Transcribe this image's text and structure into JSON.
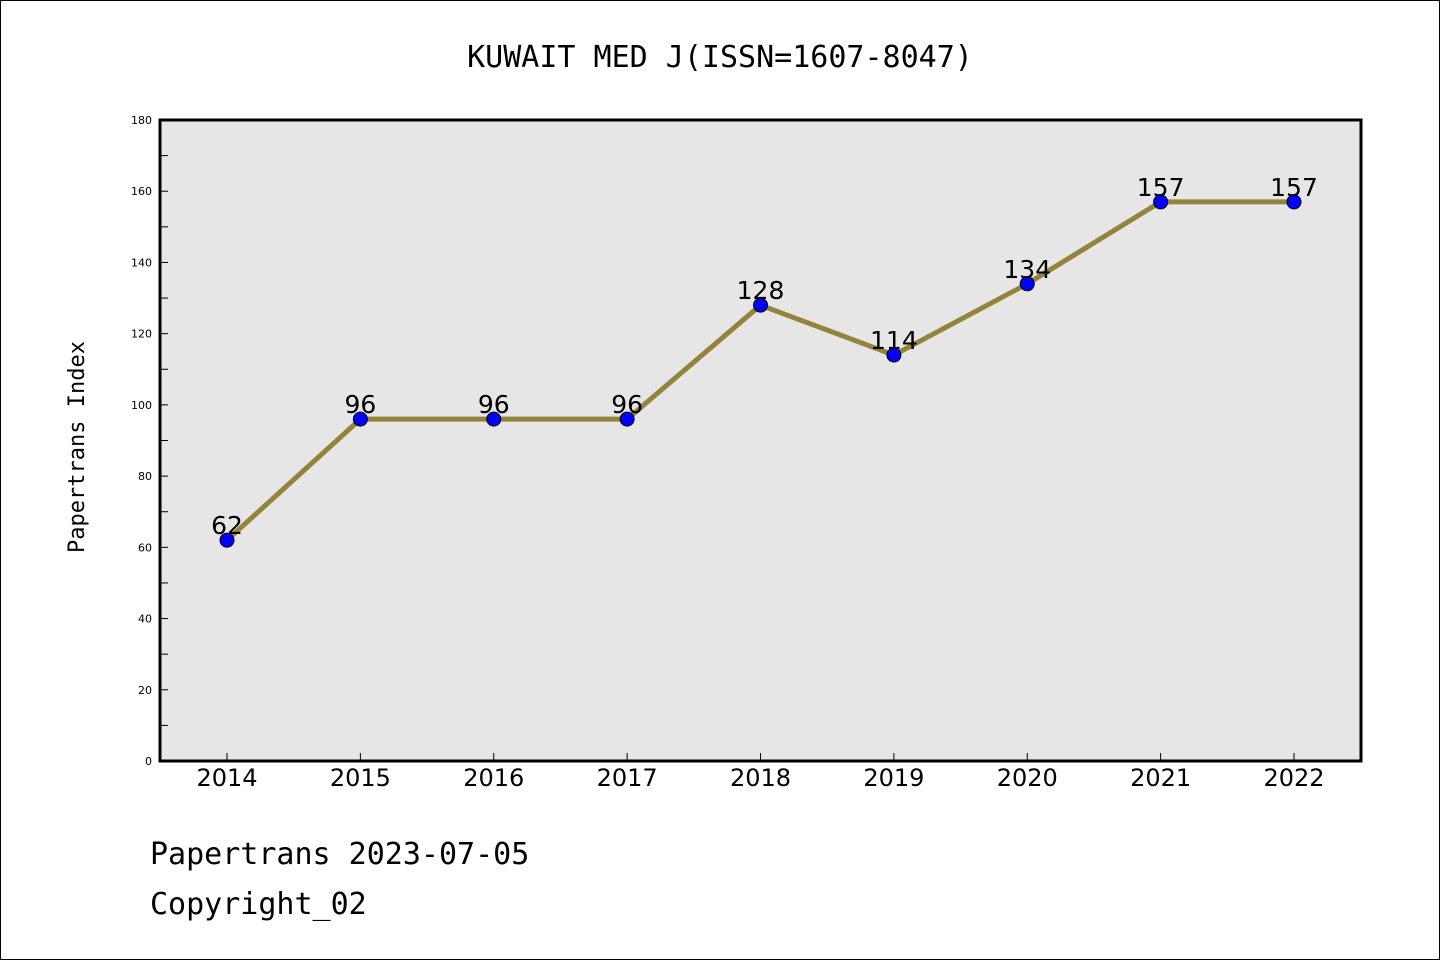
{
  "chart_data": {
    "type": "line",
    "title": "KUWAIT MED J(ISSN=1607-8047)",
    "xlabel": "",
    "ylabel": "Papertrans Index",
    "categories": [
      "2014",
      "2015",
      "2016",
      "2017",
      "2018",
      "2019",
      "2020",
      "2021",
      "2022"
    ],
    "series": [
      {
        "values": [
          62,
          96,
          96,
          96,
          128,
          114,
          134,
          157,
          157
        ]
      }
    ],
    "data_labels": [
      "62",
      "96",
      "96",
      "96",
      "128",
      "114",
      "134",
      "157",
      "157"
    ],
    "ylim": [
      0,
      180
    ],
    "yticks": [
      "0",
      "20",
      "40",
      "60",
      "80",
      "100",
      "120",
      "140",
      "160",
      "180"
    ],
    "grid": false,
    "legend": "none",
    "colors": {
      "line": "#94843b",
      "marker": "#0000ff",
      "plot_background": "#e6e6e6"
    }
  },
  "footer": {
    "line1": "Papertrans 2023-07-05",
    "line2": "Copyright_02"
  }
}
